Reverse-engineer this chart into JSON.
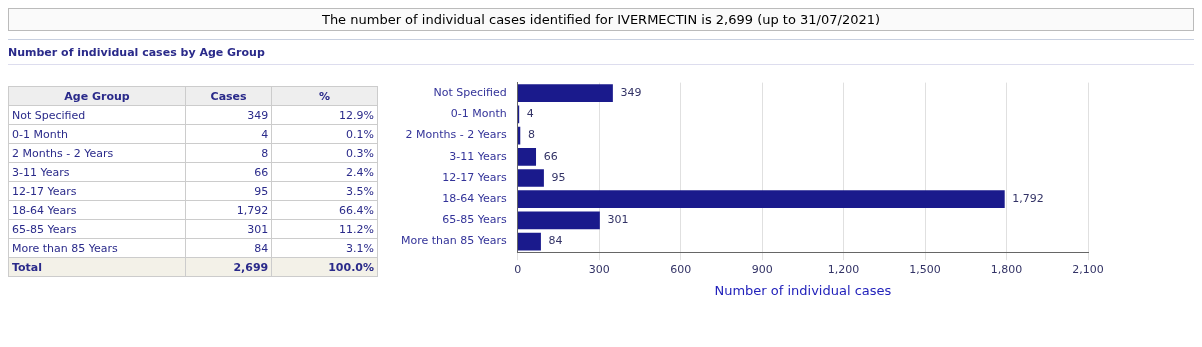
{
  "chart_data": [
    {
      "type": "other",
      "subtitle": "Number of individual cases by Age Group",
      "xlabel": "Age Group",
      "categories": [
        "Not Specified",
        "0-1 Month",
        "2 Months - 2 Years",
        "3-11 Years",
        "12-17 Years",
        "18-64 Years",
        "65-85 Years",
        "More than 85 Years",
        "Total"
      ],
      "series": [
        {
          "name": "Cases",
          "colors": [
            "#ffffff",
            "#ffffff",
            "#ffffff",
            "#ffffff",
            "#ffffff",
            "#ffffff",
            "#ffffff",
            "#ffffff",
            "#f3f1e8"
          ],
          "values": [
            349,
            4,
            8,
            66,
            95,
            1792,
            301,
            84,
            2699
          ],
          "value_labels": [
            "349",
            "4",
            "8",
            "66",
            "95",
            "1,792",
            "301",
            "84",
            "2,699"
          ]
        },
        {
          "name": "%",
          "colors": [
            "#ffffff",
            "#ffffff",
            "#ffffff",
            "#ffffff",
            "#ffffff",
            "#ffffff",
            "#ffffff",
            "#ffffff",
            "#f3f1e8"
          ],
          "values": [
            12.9,
            0.1,
            0.3,
            2.4,
            3.5,
            66.4,
            11.2,
            3.1,
            100.0
          ],
          "value_labels": [
            "12.9%",
            "0.1%",
            "0.3%",
            "2.4%",
            "3.5%",
            "66.4%",
            "11.2%",
            "3.1%",
            "100.0%"
          ]
        }
      ]
    },
    {
      "type": "bar",
      "title": "The number of individual cases identified for IVERMECTIN is 2,699 (up to 31/07/2021)",
      "orientation": "horizontal",
      "categories": [
        "Not Specified",
        "0-1 Month",
        "2 Months - 2 Years",
        "3-11 Years",
        "12-17 Years",
        "18-64 Years",
        "65-85 Years",
        "More than 85 Years"
      ],
      "values": [
        349,
        4,
        8,
        66,
        95,
        1792,
        301,
        84
      ],
      "value_labels": [
        "349",
        "4",
        "8",
        "66",
        "95",
        "1,792",
        "301",
        "84"
      ],
      "color": "#1a1a8c",
      "xlabel": "Number of individual cases",
      "xlim": [
        0,
        2100
      ],
      "xticks": [
        0,
        300,
        600,
        900,
        {
          "value": 1200,
          "label": "1,200"
        },
        {
          "value": 1500,
          "label": "1,500"
        },
        {
          "value": 1800,
          "label": "1,800"
        },
        {
          "value": 2100,
          "label": "2,100"
        }
      ],
      "grid": "x"
    }
  ]
}
